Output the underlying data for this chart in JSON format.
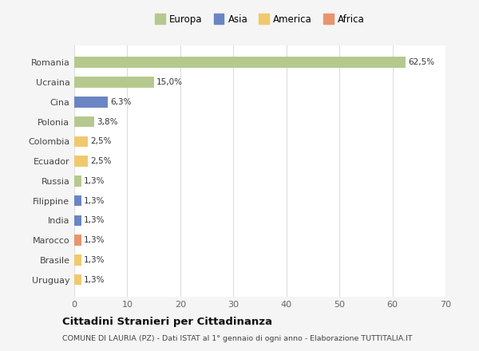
{
  "categories": [
    "Romania",
    "Ucraina",
    "Cina",
    "Polonia",
    "Colombia",
    "Ecuador",
    "Russia",
    "Filippine",
    "India",
    "Marocco",
    "Brasile",
    "Uruguay"
  ],
  "values": [
    62.5,
    15.0,
    6.3,
    3.8,
    2.5,
    2.5,
    1.3,
    1.3,
    1.3,
    1.3,
    1.3,
    1.3
  ],
  "labels": [
    "62,5%",
    "15,0%",
    "6,3%",
    "3,8%",
    "2,5%",
    "2,5%",
    "1,3%",
    "1,3%",
    "1,3%",
    "1,3%",
    "1,3%",
    "1,3%"
  ],
  "colors": [
    "#b5c98e",
    "#b5c98e",
    "#6b85c4",
    "#b5c98e",
    "#f0c96e",
    "#f0c96e",
    "#b5c98e",
    "#6b85c4",
    "#6b85c4",
    "#e8956d",
    "#f0c96e",
    "#f0c96e"
  ],
  "legend_labels": [
    "Europa",
    "Asia",
    "America",
    "Africa"
  ],
  "legend_colors": [
    "#b5c98e",
    "#6b85c4",
    "#f0c96e",
    "#e8956d"
  ],
  "xlim": [
    0,
    70
  ],
  "xticks": [
    0,
    10,
    20,
    30,
    40,
    50,
    60,
    70
  ],
  "title": "Cittadini Stranieri per Cittadinanza",
  "subtitle": "COMUNE DI LAURIA (PZ) - Dati ISTAT al 1° gennaio di ogni anno - Elaborazione TUTTITALIA.IT",
  "bg_color": "#f5f5f5",
  "plot_bg_color": "#ffffff",
  "grid_color": "#dddddd",
  "bar_height": 0.55
}
